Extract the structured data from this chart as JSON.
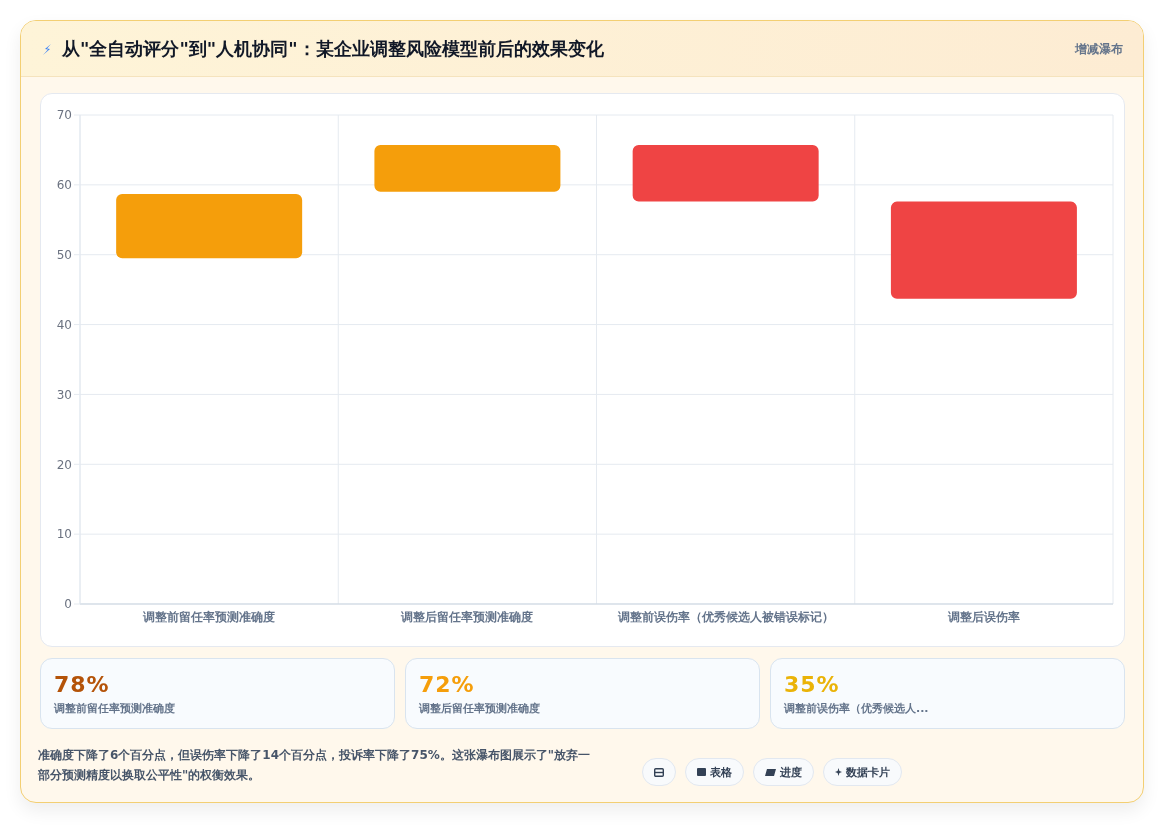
{
  "chart_data": [
    {
      "type": "bar",
      "title": "从\"全自动评分\"到\"人机协同\"：某企业调整风险模型前后的效果变化",
      "subtitle": "增减瀑布",
      "categories": [
        "调整前留任率预测准确度",
        "调整后留任率预测准确度",
        "调整前误伤率（优秀候选人被错误标记）",
        "调整后误伤率"
      ],
      "values": [
        9.2,
        6.7,
        8.1,
        13.9
      ],
      "base": [
        49.5,
        59,
        57.6,
        43.7
      ],
      "colors": [
        "#f59e0b",
        "#f59e0b",
        "#ef4444",
        "#ef4444"
      ],
      "ylim": [
        0,
        70
      ],
      "yticks": [
        0,
        10,
        20,
        30,
        40,
        50,
        60,
        70
      ],
      "grid": true,
      "annotations": [
        "准确度下降了6个百分点，但误伤率下降了14个百分点，投诉率下降了75%。这张瀑布图展示了\"放弃一部分预测精度以换取公平性\"的权衡效果。",
        "表格",
        "进度",
        "数据卡片"
      ]
    },
    {
      "type": "other",
      "categories": [
        "调整前留任率预测准确度",
        "调整后留任率预测准确度",
        "调整前误伤率（优秀候选人..."
      ],
      "value_labels": [
        "78%",
        "72%",
        "35%"
      ]
    }
  ]
}
